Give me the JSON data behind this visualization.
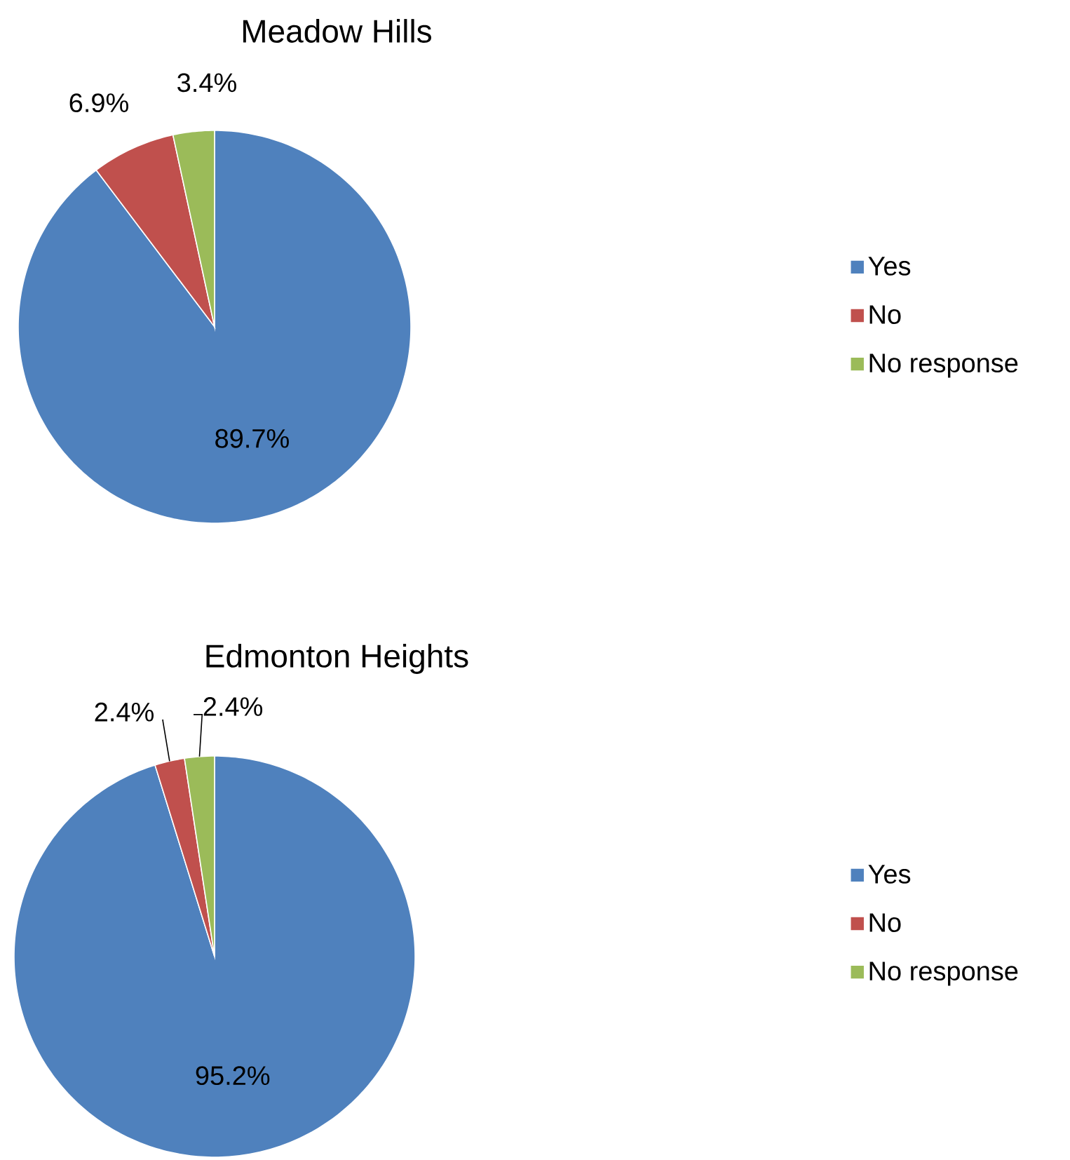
{
  "chart_data": [
    {
      "type": "pie",
      "title": "Meadow Hills",
      "categories": [
        "Yes",
        "No",
        "No response"
      ],
      "values": [
        89.7,
        6.9,
        3.4
      ],
      "colors": [
        "#4f81bd",
        "#c0504d",
        "#9bbb59"
      ],
      "value_labels": [
        "89.7%",
        "6.9%",
        "3.4%"
      ],
      "legend": "right"
    },
    {
      "type": "pie",
      "title": "Edmonton Heights",
      "categories": [
        "Yes",
        "No",
        "No response"
      ],
      "values": [
        95.2,
        2.4,
        2.4
      ],
      "colors": [
        "#4f81bd",
        "#c0504d",
        "#9bbb59"
      ],
      "value_labels": [
        "95.2%",
        "2.4%",
        "2.4%"
      ],
      "legend": "right"
    }
  ]
}
